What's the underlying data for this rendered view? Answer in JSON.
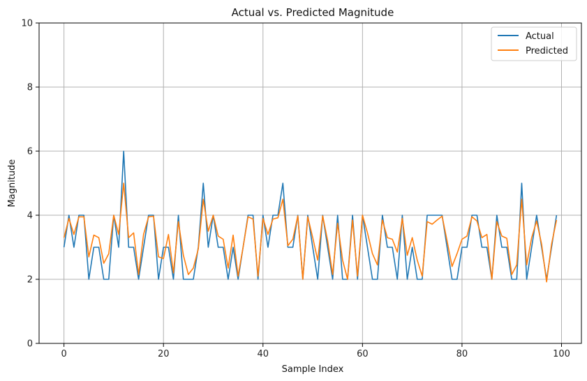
{
  "chart_data": {
    "type": "line",
    "title": "Actual vs. Predicted Magnitude",
    "xlabel": "Sample Index",
    "ylabel": "Magnitude",
    "xlim": [
      -5,
      104
    ],
    "ylim": [
      0,
      10
    ],
    "xticks": [
      0,
      20,
      40,
      60,
      80,
      100
    ],
    "yticks": [
      0,
      2,
      4,
      6,
      8,
      10
    ],
    "grid": true,
    "legend_position": "top-right",
    "x": [
      0,
      1,
      2,
      3,
      4,
      5,
      6,
      7,
      8,
      9,
      10,
      11,
      12,
      13,
      14,
      15,
      16,
      17,
      18,
      19,
      20,
      21,
      22,
      23,
      24,
      25,
      26,
      27,
      28,
      29,
      30,
      31,
      32,
      33,
      34,
      35,
      36,
      37,
      38,
      39,
      40,
      41,
      42,
      43,
      44,
      45,
      46,
      47,
      48,
      49,
      50,
      51,
      52,
      53,
      54,
      55,
      56,
      57,
      58,
      59,
      60,
      61,
      62,
      63,
      64,
      65,
      66,
      67,
      68,
      69,
      70,
      71,
      72,
      73,
      74,
      75,
      76,
      77,
      78,
      79,
      80,
      81,
      82,
      83,
      84,
      85,
      86,
      87,
      88,
      89,
      90,
      91,
      92,
      93,
      94,
      95,
      96,
      97,
      98,
      99
    ],
    "series": [
      {
        "name": "Actual",
        "color": "#1f77b4",
        "values": [
          3,
          4,
          3,
          4,
          4,
          2,
          3,
          3,
          2,
          2,
          4,
          3,
          6,
          3,
          3,
          2,
          3,
          4,
          4,
          2,
          3,
          3,
          2,
          4,
          2,
          2,
          2,
          3,
          5,
          3,
          4,
          3,
          3,
          2,
          3,
          2,
          3,
          4,
          4,
          2,
          4,
          3,
          4,
          4,
          5,
          3,
          3,
          4,
          2,
          4,
          3,
          2,
          4,
          3,
          2,
          4,
          2,
          2,
          4,
          2,
          4,
          3,
          2,
          2,
          4,
          3,
          3,
          2,
          4,
          2,
          3,
          2,
          2,
          4,
          4,
          4,
          4,
          3,
          2,
          2,
          3,
          3,
          4,
          4,
          3,
          3,
          2,
          4,
          3,
          3,
          2,
          2,
          5,
          2,
          3,
          4,
          3,
          2,
          3,
          4
        ]
      },
      {
        "name": "Predicted",
        "color": "#ff7f0e",
        "values": [
          3.3,
          3.9,
          3.4,
          3.95,
          3.95,
          2.7,
          3.38,
          3.3,
          2.5,
          2.8,
          4.0,
          3.4,
          5.0,
          3.3,
          3.45,
          2.15,
          3.4,
          3.95,
          3.97,
          2.7,
          2.65,
          3.4,
          2.2,
          3.8,
          2.75,
          2.15,
          2.35,
          2.95,
          4.5,
          3.5,
          4.0,
          3.35,
          3.25,
          2.35,
          3.38,
          2.1,
          3.0,
          3.95,
          3.88,
          2.1,
          3.9,
          3.4,
          3.88,
          3.92,
          4.5,
          3.05,
          3.25,
          3.98,
          2.0,
          3.95,
          3.3,
          2.6,
          3.98,
          3.2,
          2.15,
          3.75,
          2.6,
          2.0,
          3.85,
          2.1,
          4.0,
          3.45,
          2.8,
          2.45,
          3.85,
          3.3,
          3.25,
          2.85,
          3.9,
          2.75,
          3.3,
          2.6,
          2.1,
          3.8,
          3.72,
          3.85,
          3.97,
          3.2,
          2.4,
          2.8,
          3.25,
          3.35,
          3.95,
          3.82,
          3.3,
          3.4,
          2.0,
          3.8,
          3.35,
          3.28,
          2.15,
          2.45,
          4.5,
          2.45,
          3.3,
          3.82,
          3.1,
          1.92,
          3.1,
          3.85
        ]
      }
    ]
  }
}
